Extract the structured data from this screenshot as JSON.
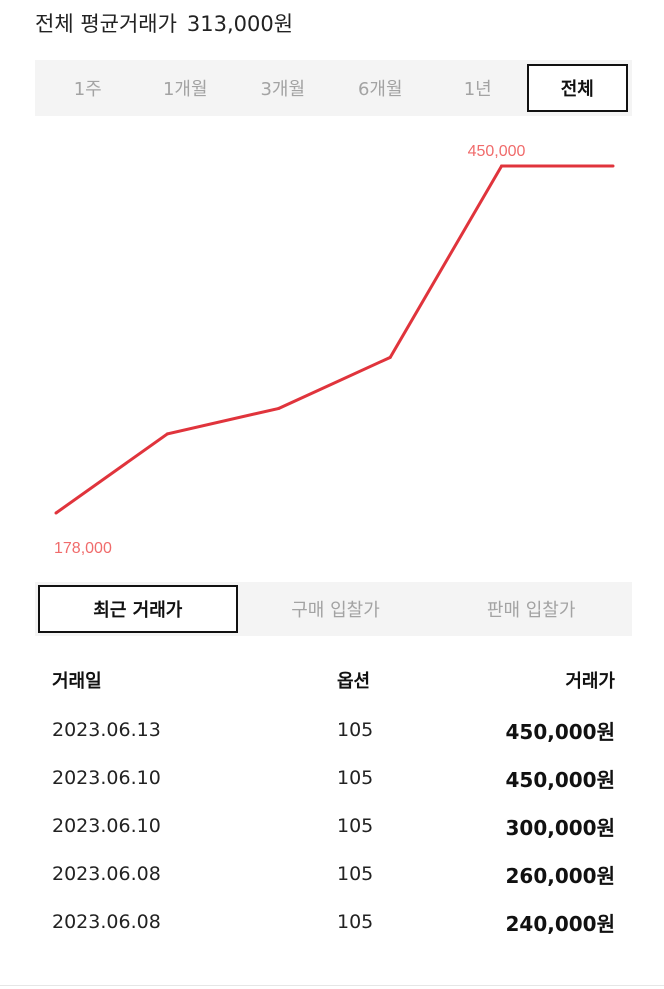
{
  "summary": {
    "label": "전체 평균거래가",
    "value": "313,000원"
  },
  "period_tabs": [
    {
      "label": "1주",
      "active": false
    },
    {
      "label": "1개월",
      "active": false
    },
    {
      "label": "3개월",
      "active": false
    },
    {
      "label": "6개월",
      "active": false
    },
    {
      "label": "1년",
      "active": false
    },
    {
      "label": "전체",
      "active": true
    }
  ],
  "chart_data": {
    "type": "line",
    "color": "#e0343c",
    "label_color": "#f06b6b",
    "x": [
      1,
      2,
      3,
      4,
      5,
      6
    ],
    "series": [
      {
        "values": [
          178000,
          240000,
          260000,
          300000,
          450000,
          450000
        ]
      }
    ],
    "ylim": [
      178000,
      450000
    ],
    "max_label": "450,000",
    "min_label": "178,000",
    "grid": false
  },
  "list_tabs": [
    {
      "label": "최근 거래가",
      "active": true
    },
    {
      "label": "구매 입찰가",
      "active": false
    },
    {
      "label": "판매 입찰가",
      "active": false
    }
  ],
  "table": {
    "headers": {
      "date": "거래일",
      "option": "옵션",
      "price": "거래가"
    },
    "rows": [
      {
        "date": "2023.06.13",
        "option": "105",
        "price": "450,000원"
      },
      {
        "date": "2023.06.10",
        "option": "105",
        "price": "450,000원"
      },
      {
        "date": "2023.06.10",
        "option": "105",
        "price": "300,000원"
      },
      {
        "date": "2023.06.08",
        "option": "105",
        "price": "260,000원"
      },
      {
        "date": "2023.06.08",
        "option": "105",
        "price": "240,000원"
      }
    ]
  }
}
